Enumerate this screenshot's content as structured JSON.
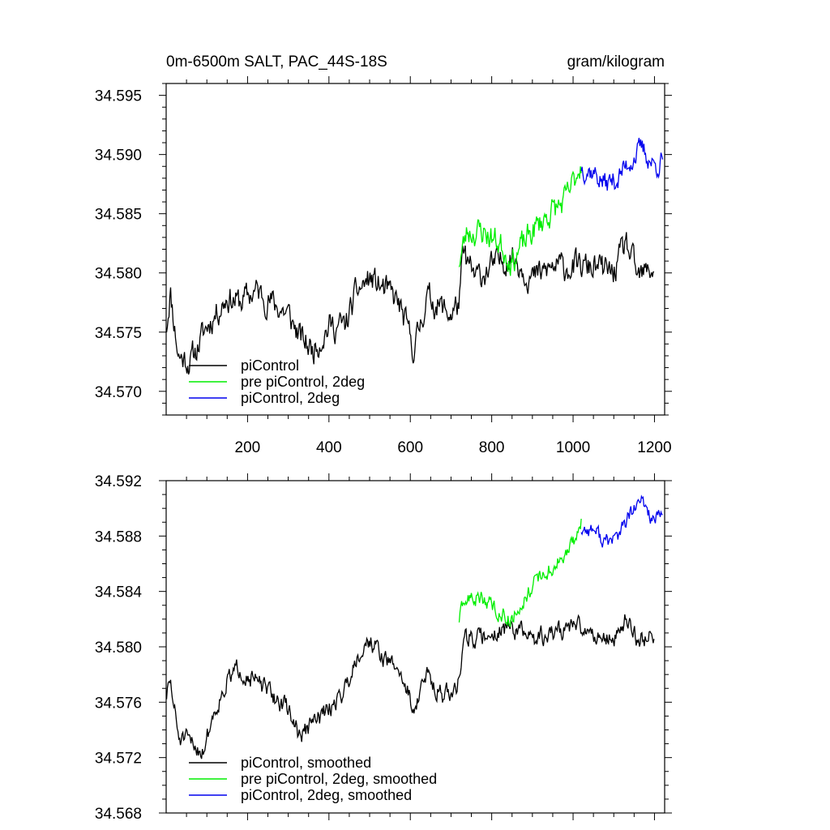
{
  "chart_data": [
    {
      "type": "line",
      "title": "0m-6500m SALT, PAC_44S-18S",
      "units": "gram/kilogram",
      "xlabel": "",
      "ylabel": "",
      "xlim": [
        0,
        1225
      ],
      "ylim": [
        34.568,
        34.596
      ],
      "x_ticks": [
        200,
        400,
        600,
        800,
        1000,
        1200
      ],
      "y_ticks": [
        34.57,
        34.575,
        34.58,
        34.585,
        34.59,
        34.595
      ],
      "grid": false,
      "legend_position": "bottom-left",
      "series": [
        {
          "name": "piControl",
          "color": "#000000",
          "x_start": 1,
          "x_end": 1200,
          "anchors": [
            [
              1,
              34.5755
            ],
            [
              10,
              34.5785
            ],
            [
              30,
              34.573
            ],
            [
              60,
              34.5725
            ],
            [
              100,
              34.5755
            ],
            [
              150,
              34.578
            ],
            [
              180,
              34.5775
            ],
            [
              220,
              34.5785
            ],
            [
              260,
              34.5775
            ],
            [
              300,
              34.5765
            ],
            [
              330,
              34.5745
            ],
            [
              360,
              34.5735
            ],
            [
              400,
              34.5755
            ],
            [
              440,
              34.5755
            ],
            [
              470,
              34.5785
            ],
            [
              500,
              34.5795
            ],
            [
              540,
              34.5785
            ],
            [
              570,
              34.5775
            ],
            [
              610,
              34.5735
            ],
            [
              640,
              34.578
            ],
            [
              680,
              34.577
            ],
            [
              700,
              34.5765
            ],
            [
              720,
              34.5775
            ],
            [
              730,
              34.5815
            ],
            [
              760,
              34.5795
            ],
            [
              800,
              34.5805
            ],
            [
              850,
              34.5815
            ],
            [
              900,
              34.5795
            ],
            [
              950,
              34.5805
            ],
            [
              1000,
              34.5805
            ],
            [
              1050,
              34.5805
            ],
            [
              1100,
              34.58
            ],
            [
              1130,
              34.5825
            ],
            [
              1160,
              34.5795
            ],
            [
              1200,
              34.5805
            ]
          ],
          "noise_amplitude": 0.0022,
          "seed": 11
        },
        {
          "name": "pre piControl, 2deg",
          "color": "#00ee00",
          "x_start": 720,
          "x_end": 1020,
          "anchors": [
            [
              720,
              34.581
            ],
            [
              740,
              34.5835
            ],
            [
              780,
              34.5835
            ],
            [
              820,
              34.5825
            ],
            [
              850,
              34.581
            ],
            [
              870,
              34.582
            ],
            [
              900,
              34.5835
            ],
            [
              940,
              34.585
            ],
            [
              980,
              34.586
            ],
            [
              1000,
              34.5875
            ],
            [
              1020,
              34.5895
            ]
          ],
          "noise_amplitude": 0.0022,
          "seed": 23
        },
        {
          "name": "piControl, 2deg",
          "color": "#0000ee",
          "x_start": 1020,
          "x_end": 1220,
          "anchors": [
            [
              1020,
              34.589
            ],
            [
              1050,
              34.5885
            ],
            [
              1080,
              34.5875
            ],
            [
              1110,
              34.588
            ],
            [
              1140,
              34.5895
            ],
            [
              1170,
              34.5905
            ],
            [
              1200,
              34.589
            ],
            [
              1220,
              34.5895
            ]
          ],
          "noise_amplitude": 0.0018,
          "seed": 37
        }
      ]
    },
    {
      "type": "line",
      "title": "",
      "xlabel": "",
      "ylabel": "",
      "xlim": [
        0,
        1225
      ],
      "ylim": [
        34.568,
        34.592
      ],
      "x_ticks": [
        200,
        400,
        600,
        800,
        1000,
        1200
      ],
      "y_ticks": [
        34.568,
        34.572,
        34.576,
        34.58,
        34.584,
        34.588,
        34.592
      ],
      "grid": false,
      "legend_position": "bottom-left",
      "series": [
        {
          "name": "piControl, smoothed",
          "color": "#000000",
          "x_start": 1,
          "x_end": 1200,
          "anchors": [
            [
              1,
              34.5765
            ],
            [
              10,
              34.5775
            ],
            [
              30,
              34.5735
            ],
            [
              60,
              34.573
            ],
            [
              90,
              34.5725
            ],
            [
              120,
              34.5755
            ],
            [
              150,
              34.5775
            ],
            [
              180,
              34.5785
            ],
            [
              220,
              34.5775
            ],
            [
              260,
              34.5765
            ],
            [
              300,
              34.5755
            ],
            [
              330,
              34.5735
            ],
            [
              360,
              34.5745
            ],
            [
              400,
              34.5755
            ],
            [
              440,
              34.577
            ],
            [
              470,
              34.5795
            ],
            [
              500,
              34.5805
            ],
            [
              540,
              34.579
            ],
            [
              570,
              34.5785
            ],
            [
              610,
              34.5755
            ],
            [
              640,
              34.578
            ],
            [
              680,
              34.5765
            ],
            [
              700,
              34.5765
            ],
            [
              720,
              34.5775
            ],
            [
              730,
              34.581
            ],
            [
              760,
              34.5805
            ],
            [
              800,
              34.581
            ],
            [
              850,
              34.5815
            ],
            [
              900,
              34.5805
            ],
            [
              950,
              34.581
            ],
            [
              1000,
              34.5815
            ],
            [
              1050,
              34.581
            ],
            [
              1100,
              34.5805
            ],
            [
              1130,
              34.582
            ],
            [
              1160,
              34.5805
            ],
            [
              1200,
              34.581
            ]
          ],
          "noise_amplitude": 0.0013,
          "seed": 51
        },
        {
          "name": "pre piControl, 2deg, smoothed",
          "color": "#00ee00",
          "x_start": 720,
          "x_end": 1020,
          "anchors": [
            [
              720,
              34.582
            ],
            [
              740,
              34.5835
            ],
            [
              780,
              34.5835
            ],
            [
              820,
              34.5825
            ],
            [
              850,
              34.582
            ],
            [
              870,
              34.583
            ],
            [
              900,
              34.5845
            ],
            [
              940,
              34.5855
            ],
            [
              980,
              34.5865
            ],
            [
              1000,
              34.5875
            ],
            [
              1020,
              34.589
            ]
          ],
          "noise_amplitude": 0.0011,
          "seed": 63
        },
        {
          "name": "piControl, 2deg, smoothed",
          "color": "#0000ee",
          "x_start": 1020,
          "x_end": 1220,
          "anchors": [
            [
              1020,
              34.5885
            ],
            [
              1050,
              34.5885
            ],
            [
              1080,
              34.5875
            ],
            [
              1110,
              34.588
            ],
            [
              1140,
              34.5895
            ],
            [
              1170,
              34.5905
            ],
            [
              1200,
              34.589
            ],
            [
              1220,
              34.5895
            ]
          ],
          "noise_amplitude": 0.0011,
          "seed": 77
        }
      ]
    }
  ]
}
